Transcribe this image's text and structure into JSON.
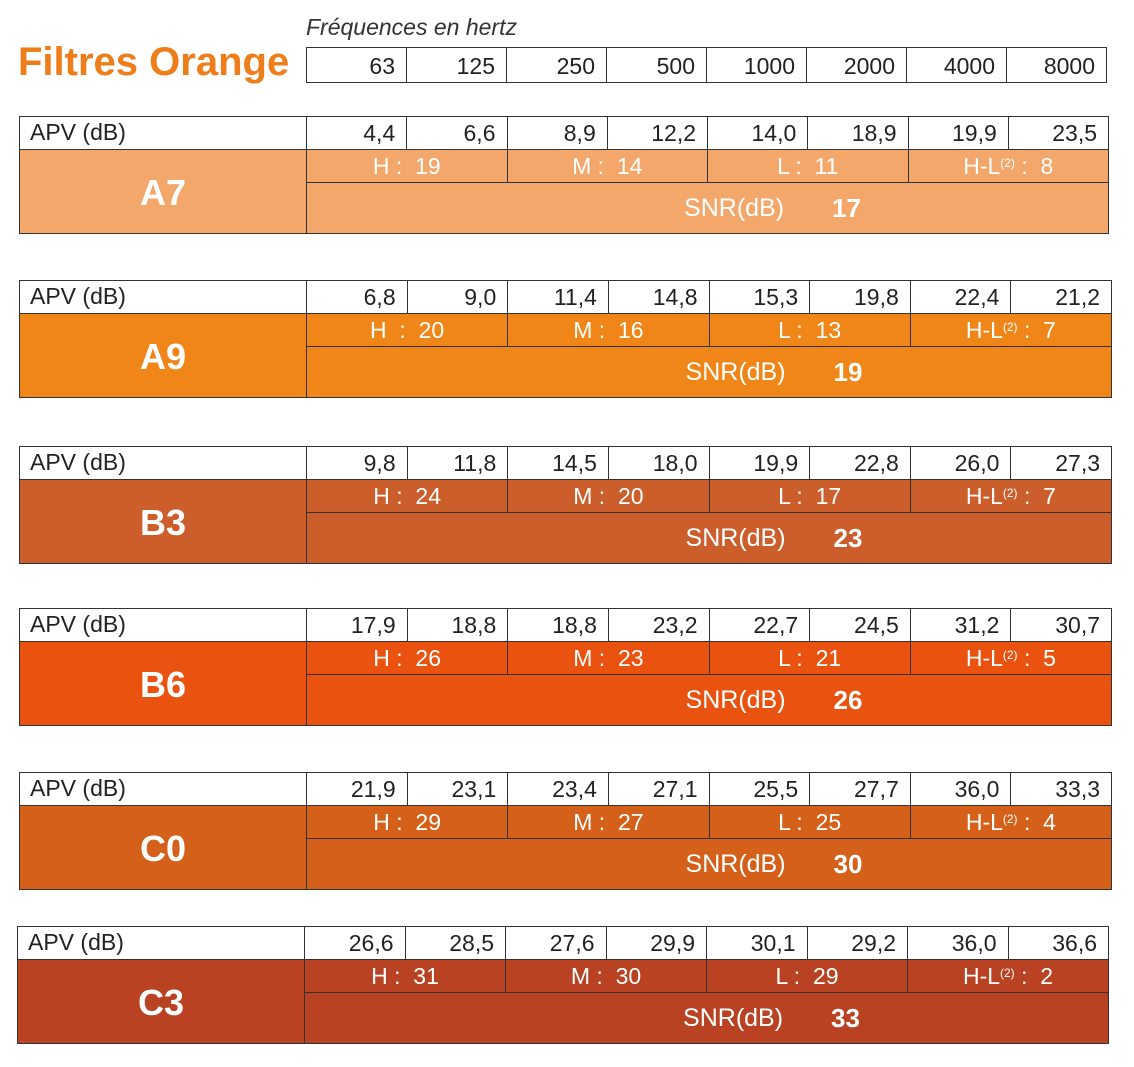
{
  "title": "Filtres Orange",
  "frequency_caption": "Fréquences en hertz",
  "frequencies": [
    "63",
    "125",
    "250",
    "500",
    "1000",
    "2000",
    "4000",
    "8000"
  ],
  "apv_label": "APV (dB)",
  "snr_label": "SNR(dB)",
  "hl_sup": "(2)",
  "filters": [
    {
      "name": "A7",
      "color": "#f4a76a",
      "apv": [
        "4,4",
        "6,6",
        "8,9",
        "12,2",
        "14,0",
        "18,9",
        "19,9",
        "23,5"
      ],
      "h": "H :  19",
      "m": "M :  14",
      "l": "L :  11",
      "hl_prefix": "H-L",
      "hl_value": " :  8",
      "snr": "17"
    },
    {
      "name": "A9",
      "color": "#f08618",
      "apv": [
        "6,8",
        "9,0",
        "11,4",
        "14,8",
        "15,3",
        "19,8",
        "22,4",
        "21,2"
      ],
      "h": "H  :  20",
      "m": "M :  16",
      "l": "L :  13",
      "hl_prefix": "H-L",
      "hl_value": " :  7",
      "snr": "19"
    },
    {
      "name": "B3",
      "color": "#cc5e2c",
      "apv": [
        "9,8",
        "11,8",
        "14,5",
        "18,0",
        "19,9",
        "22,8",
        "26,0",
        "27,3"
      ],
      "h": "H :  24",
      "m": "M :  20",
      "l": "L :  17",
      "hl_prefix": "H-L",
      "hl_value": " :  7",
      "snr": "23"
    },
    {
      "name": "B6",
      "color": "#e9530f",
      "apv": [
        "17,9",
        "18,8",
        "18,8",
        "23,2",
        "22,7",
        "24,5",
        "31,2",
        "30,7"
      ],
      "h": "H :  26",
      "m": "M :  23",
      "l": "L :  21",
      "hl_prefix": "H-L",
      "hl_value": " :  5",
      "snr": "26"
    },
    {
      "name": "C0",
      "color": "#d4601a",
      "apv": [
        "21,9",
        "23,1",
        "23,4",
        "27,1",
        "25,5",
        "27,7",
        "36,0",
        "33,3"
      ],
      "h": "H :  29",
      "m": "M :  27",
      "l": "L :  25",
      "hl_prefix": "H-L",
      "hl_value": " :  4",
      "snr": "30"
    },
    {
      "name": "C3",
      "color": "#b84222",
      "apv": [
        "26,6",
        "28,5",
        "27,6",
        "29,9",
        "30,1",
        "29,2",
        "36,0",
        "36,6"
      ],
      "h": "H :  31",
      "m": "M :  30",
      "l": "L :  29",
      "hl_prefix": "H-L",
      "hl_value": " :  2",
      "snr": "33"
    }
  ]
}
